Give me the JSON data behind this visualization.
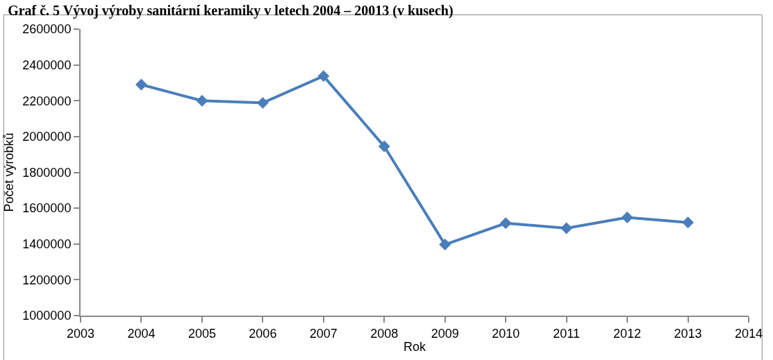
{
  "chart_data": {
    "type": "line",
    "title": "Graf č. 5 Vývoj výroby sanitární keramiky v letech 2004 – 20013 (v kusech)",
    "xlabel": "Rok",
    "ylabel": "Počet výrobků",
    "x": [
      2004,
      2005,
      2006,
      2007,
      2008,
      2009,
      2010,
      2011,
      2012,
      2013
    ],
    "series": [
      {
        "color": "#4a7ebb",
        "values": [
          2290000,
          2200000,
          2188000,
          2338000,
          1945000,
          1397000,
          1516000,
          1488000,
          1548000,
          1520000
        ]
      }
    ],
    "xlim": [
      2003,
      2014
    ],
    "xticks": [
      2003,
      2004,
      2005,
      2006,
      2007,
      2008,
      2009,
      2010,
      2011,
      2012,
      2013,
      2014
    ],
    "ylim": [
      1000000,
      2600000
    ],
    "yticks": [
      1000000,
      1200000,
      1400000,
      1600000,
      1800000,
      2000000,
      2200000,
      2400000,
      2600000
    ],
    "legend": false,
    "marker": "diamond",
    "line_style": "solid"
  }
}
